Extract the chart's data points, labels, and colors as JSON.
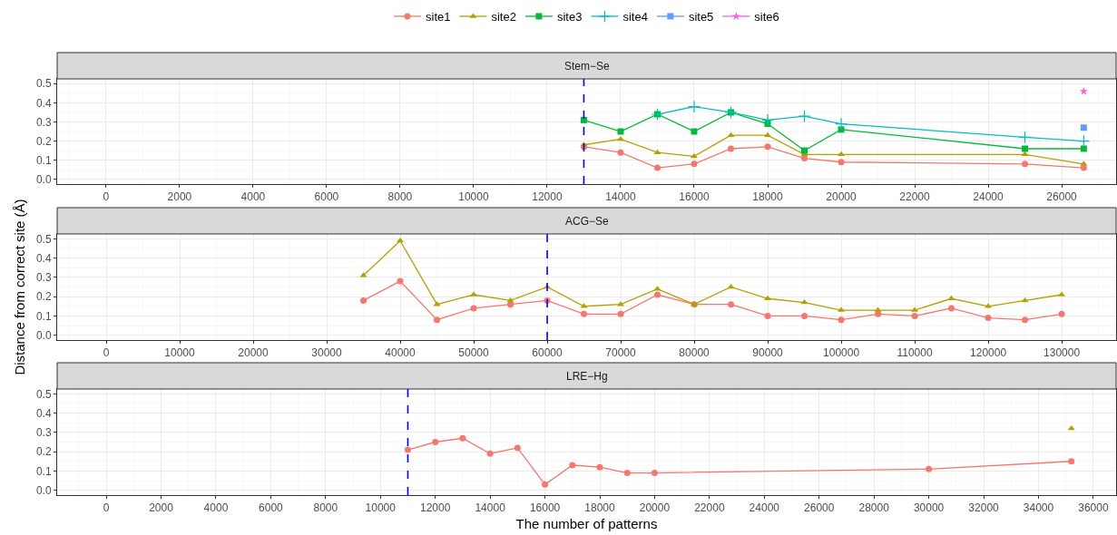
{
  "chart_data": [
    {
      "type": "line",
      "title": "Stem−Se",
      "legend": "top",
      "grid": true,
      "xlim": [
        -1330,
        27480
      ],
      "ylim": [
        -0.025,
        0.525
      ],
      "xticks": [
        0,
        2000,
        4000,
        6000,
        8000,
        10000,
        12000,
        14000,
        16000,
        18000,
        20000,
        22000,
        24000,
        26000
      ],
      "yticks": [
        {
          "value": 0,
          "label": "0.0"
        },
        {
          "value": 0.1,
          "label": "0.1"
        },
        {
          "value": 0.2,
          "label": "0.2"
        },
        {
          "value": 0.3,
          "label": "0.3"
        },
        {
          "value": 0.4,
          "label": "0.4"
        },
        {
          "value": 0.5,
          "label": "0.5"
        }
      ],
      "ref_lines": [
        {
          "axis": "x",
          "value": 13000,
          "color": "#0000ff",
          "line_style": "dashed"
        }
      ],
      "series": [
        {
          "name": "site1",
          "color": "#f8766d",
          "marker": "circle",
          "x": [
            13000,
            14000,
            15000,
            16000,
            17000,
            18000,
            19000,
            20000,
            25000,
            26600
          ],
          "values": [
            0.17,
            0.14,
            0.06,
            0.08,
            0.16,
            0.17,
            0.11,
            0.09,
            0.08,
            0.06
          ]
        },
        {
          "name": "site2",
          "color": "#b79f00",
          "marker": "triangle",
          "x": [
            13000,
            14000,
            15000,
            16000,
            17000,
            18000,
            19000,
            20000,
            25000,
            26600
          ],
          "values": [
            0.18,
            0.21,
            0.14,
            0.12,
            0.23,
            0.23,
            0.13,
            0.13,
            0.13,
            0.08
          ]
        },
        {
          "name": "site3",
          "color": "#00ba38",
          "marker": "square",
          "x": [
            13000,
            14000,
            15000,
            16000,
            17000,
            18000,
            19000,
            20000,
            25000,
            26600
          ],
          "values": [
            0.31,
            0.25,
            0.34,
            0.25,
            0.35,
            0.29,
            0.15,
            0.26,
            0.16,
            0.16
          ]
        },
        {
          "name": "site4",
          "color": "#00bfc4",
          "marker": "cross",
          "x": [
            15000,
            16000,
            17000,
            18000,
            19000,
            20000,
            25000,
            26600
          ],
          "values": [
            0.34,
            0.38,
            0.35,
            0.31,
            0.33,
            0.29,
            0.22,
            0.2
          ]
        },
        {
          "name": "site5",
          "color": "#619cff",
          "marker": "square",
          "x": [
            26600
          ],
          "values": [
            0.27
          ]
        },
        {
          "name": "site6",
          "color": "#f564e3",
          "marker": "star",
          "x": [
            26600
          ],
          "values": [
            0.46
          ]
        }
      ]
    },
    {
      "type": "line",
      "title": "ACG−Se",
      "ylabel": "Distance from correct site (Å)",
      "grid": true,
      "xlim": [
        -6670,
        137400
      ],
      "ylim": [
        -0.025,
        0.525
      ],
      "xticks": [
        0,
        10000,
        20000,
        30000,
        40000,
        50000,
        60000,
        70000,
        80000,
        90000,
        100000,
        110000,
        120000,
        130000
      ],
      "yticks": [
        {
          "value": 0,
          "label": "0.0"
        },
        {
          "value": 0.1,
          "label": "0.1"
        },
        {
          "value": 0.2,
          "label": "0.2"
        },
        {
          "value": 0.3,
          "label": "0.3"
        },
        {
          "value": 0.4,
          "label": "0.4"
        },
        {
          "value": 0.5,
          "label": "0.5"
        }
      ],
      "ref_lines": [
        {
          "axis": "x",
          "value": 60000,
          "color": "#0000ff",
          "line_style": "dashed"
        }
      ],
      "series": [
        {
          "color": "#f8766d",
          "marker": "circle",
          "x": [
            35000,
            40000,
            45000,
            50000,
            55000,
            60000,
            65000,
            70000,
            75000,
            80000,
            85000,
            90000,
            95000,
            100000,
            105000,
            110000,
            115000,
            120000,
            125000,
            130000
          ],
          "values": [
            0.18,
            0.28,
            0.08,
            0.14,
            0.16,
            0.18,
            0.11,
            0.11,
            0.21,
            0.16,
            0.16,
            0.1,
            0.1,
            0.08,
            0.11,
            0.1,
            0.14,
            0.09,
            0.08,
            0.11
          ]
        },
        {
          "color": "#b79f00",
          "marker": "triangle",
          "x": [
            35000,
            40000,
            45000,
            50000,
            55000,
            60000,
            65000,
            70000,
            75000,
            80000,
            85000,
            90000,
            95000,
            100000,
            105000,
            110000,
            115000,
            120000,
            125000,
            130000
          ],
          "values": [
            0.31,
            0.49,
            0.16,
            0.21,
            0.18,
            0.25,
            0.15,
            0.16,
            0.24,
            0.16,
            0.25,
            0.19,
            0.17,
            0.13,
            0.13,
            0.13,
            0.19,
            0.15,
            0.18,
            0.21
          ]
        }
      ]
    },
    {
      "type": "line",
      "title": "LRE−Hg",
      "xlabel": "The number of patterns",
      "grid": true,
      "xlim": [
        -1790,
        36830
      ],
      "ylim": [
        -0.025,
        0.525
      ],
      "xticks": [
        0,
        2000,
        4000,
        6000,
        8000,
        10000,
        12000,
        14000,
        16000,
        18000,
        20000,
        22000,
        24000,
        26000,
        28000,
        30000,
        32000,
        34000,
        36000
      ],
      "yticks": [
        {
          "value": 0,
          "label": "0.0"
        },
        {
          "value": 0.1,
          "label": "0.1"
        },
        {
          "value": 0.2,
          "label": "0.2"
        },
        {
          "value": 0.3,
          "label": "0.3"
        },
        {
          "value": 0.4,
          "label": "0.4"
        },
        {
          "value": 0.5,
          "label": "0.5"
        }
      ],
      "ref_lines": [
        {
          "axis": "x",
          "value": 11000,
          "color": "#0000ff",
          "line_style": "dashed"
        }
      ],
      "series": [
        {
          "color": "#f8766d",
          "marker": "circle",
          "x": [
            11000,
            12000,
            13000,
            14000,
            15000,
            16000,
            17000,
            18000,
            19000,
            20000,
            30000,
            35200
          ],
          "values": [
            0.21,
            0.25,
            0.27,
            0.19,
            0.22,
            0.03,
            0.13,
            0.12,
            0.09,
            0.09,
            0.11,
            0.15
          ]
        },
        {
          "color": "#b79f00",
          "marker": "triangle",
          "x": [
            35200
          ],
          "values": [
            0.32
          ]
        }
      ]
    }
  ]
}
